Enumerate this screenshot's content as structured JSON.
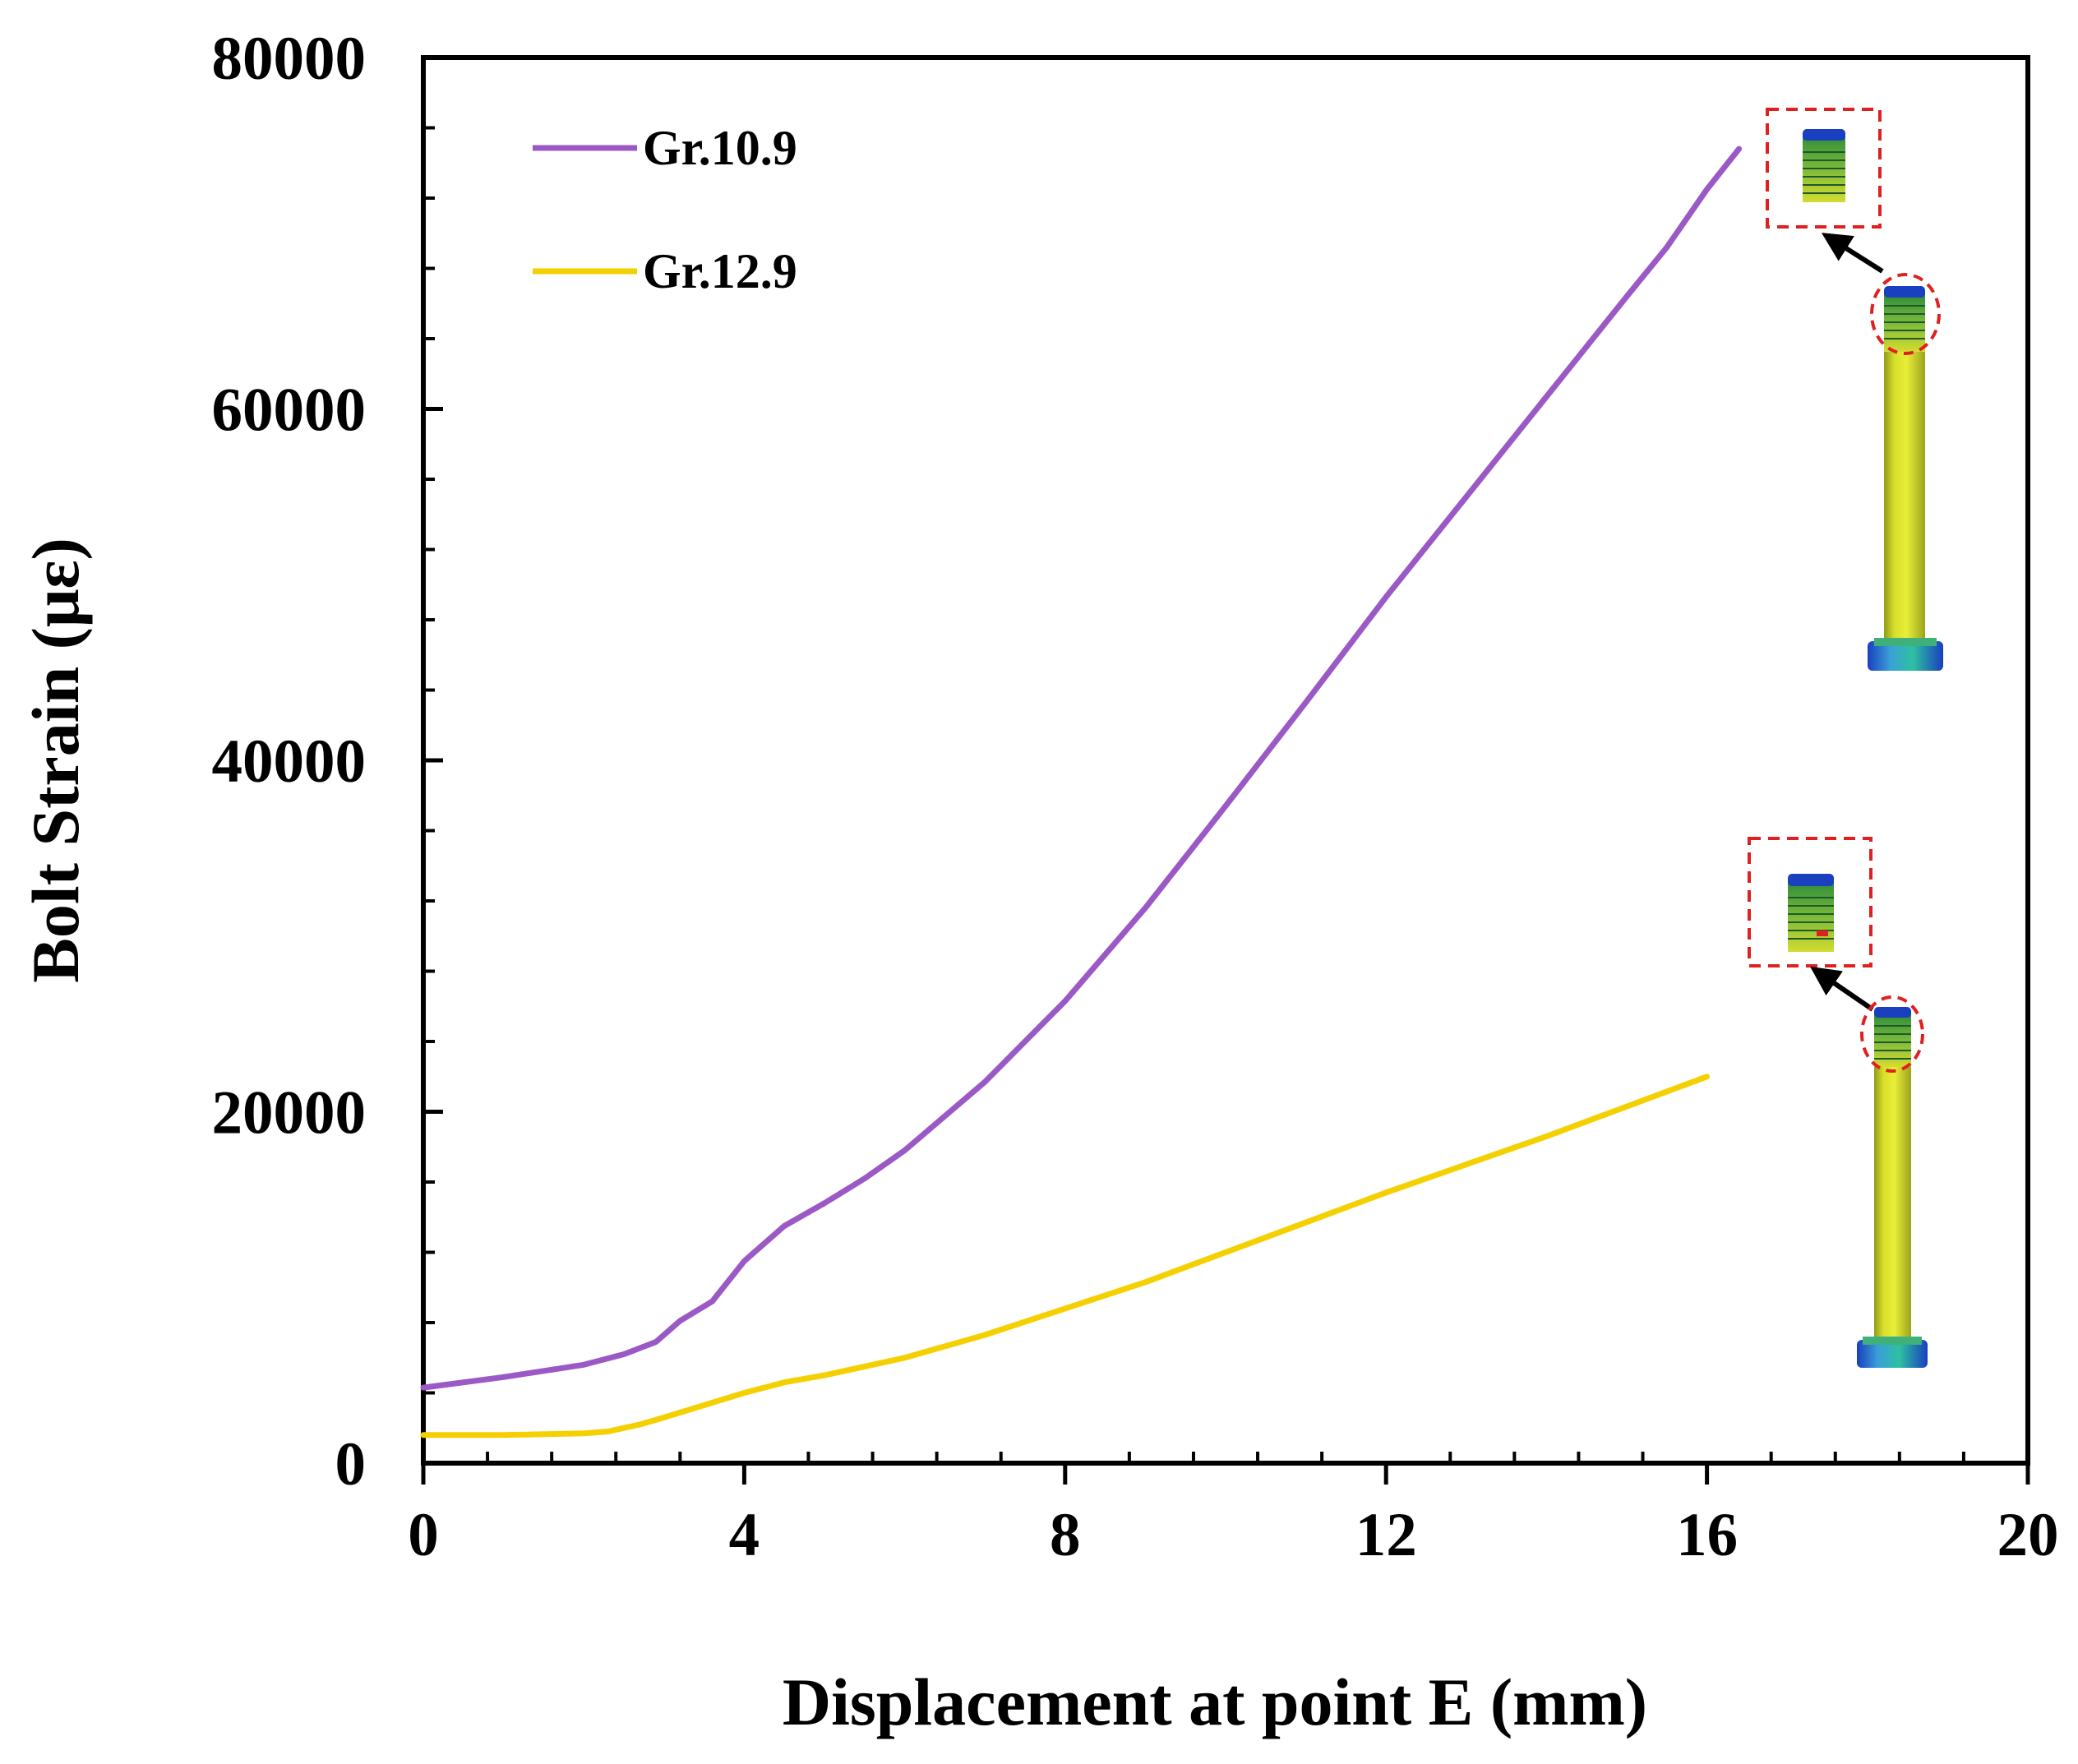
{
  "chart_data": {
    "type": "line",
    "title": "",
    "xlabel": "Displacement at point E (mm)",
    "ylabel": "Bolt Strain (με)",
    "xlim": [
      0,
      20
    ],
    "ylim": [
      0,
      80000
    ],
    "xticks": [
      0,
      4,
      8,
      12,
      16,
      20
    ],
    "xtick_labels": [
      "0",
      "4",
      "8",
      "12",
      "16",
      "20"
    ],
    "yticks": [
      0,
      20000,
      40000,
      60000,
      80000
    ],
    "ytick_labels": [
      "0",
      "20000",
      "40000",
      "60000",
      "80000"
    ],
    "x_minor_step": 0.8,
    "y_minor_step": 4000,
    "grid": false,
    "legend_position": "top-left",
    "series": [
      {
        "name": "Gr.10.9",
        "color": "#9B59C6",
        "x": [
          0,
          1,
          2,
          2.5,
          2.9,
          3.2,
          3.6,
          4.0,
          4.5,
          5.0,
          5.5,
          6.0,
          7.0,
          8.0,
          9.0,
          10.0,
          11.0,
          12.0,
          13.0,
          14.0,
          15.0,
          15.5,
          16.0,
          16.4
        ],
        "y": [
          4300,
          4900,
          5600,
          6200,
          6900,
          8100,
          9200,
          11500,
          13500,
          14800,
          16200,
          17800,
          21700,
          26300,
          31600,
          37400,
          43300,
          49300,
          55000,
          60700,
          66400,
          69200,
          72500,
          74800
        ]
      },
      {
        "name": "Gr.12.9",
        "color": "#F5D000",
        "x": [
          0,
          1,
          2,
          2.3,
          2.7,
          3.0,
          3.5,
          4.0,
          4.5,
          5.0,
          6.0,
          7.0,
          8.0,
          9.0,
          10.0,
          11.0,
          12.0,
          13.0,
          14.0,
          15.0,
          16.0
        ],
        "y": [
          1600,
          1600,
          1700,
          1800,
          2200,
          2600,
          3300,
          4000,
          4600,
          5000,
          6000,
          7300,
          8800,
          10300,
          12000,
          13700,
          15400,
          17000,
          18600,
          20300,
          22000
        ]
      }
    ],
    "annotations": [
      {
        "type": "bolt-inset",
        "series": "Gr.10.9",
        "description_icon": "bolt-contour-icon"
      },
      {
        "type": "bolt-inset",
        "series": "Gr.12.9",
        "description_icon": "bolt-contour-icon"
      }
    ]
  }
}
